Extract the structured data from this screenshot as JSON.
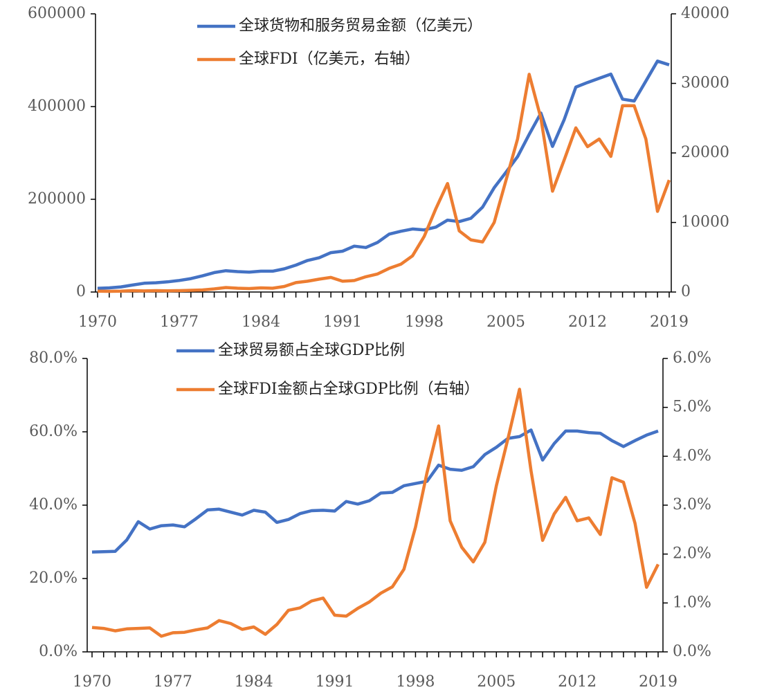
{
  "chart_data": [
    {
      "type": "line",
      "x": [
        1970,
        1971,
        1972,
        1973,
        1974,
        1975,
        1976,
        1977,
        1978,
        1979,
        1980,
        1981,
        1982,
        1983,
        1984,
        1985,
        1986,
        1987,
        1988,
        1989,
        1990,
        1991,
        1992,
        1993,
        1994,
        1995,
        1996,
        1997,
        1998,
        1999,
        2000,
        2001,
        2002,
        2003,
        2004,
        2005,
        2006,
        2007,
        2008,
        2009,
        2010,
        2011,
        2012,
        2013,
        2014,
        2015,
        2016,
        2017,
        2018,
        2019
      ],
      "xlim": [
        1970,
        2019
      ],
      "xticks": [
        1970,
        1977,
        1984,
        1991,
        1998,
        2005,
        2012,
        2019
      ],
      "ylim": [
        0,
        600000
      ],
      "yticks": [
        0,
        200000,
        400000,
        600000
      ],
      "y2lim": [
        0,
        40000
      ],
      "y2ticks": [
        0,
        10000,
        20000,
        30000,
        40000
      ],
      "series": [
        {
          "name": "全球货物和服务贸易金额（亿美元）",
          "color": "#4472c4",
          "values": [
            8000,
            9000,
            11000,
            15000,
            19000,
            20000,
            22000,
            25000,
            29000,
            35000,
            42000,
            46000,
            44000,
            43000,
            45000,
            45000,
            50000,
            58000,
            68000,
            74000,
            85000,
            88000,
            99000,
            96000,
            107000,
            125000,
            131000,
            136000,
            134000,
            140000,
            155000,
            152000,
            159000,
            183000,
            225000,
            258000,
            292000,
            340000,
            386000,
            314000,
            372000,
            442000,
            452000,
            461000,
            470000,
            416000,
            412000,
            455000,
            498000,
            490000
          ]
        },
        {
          "name": "全球FDI（亿美元，右轴）",
          "color": "#ed7d31",
          "axis": "y2",
          "values": [
            130,
            100,
            130,
            200,
            160,
            200,
            180,
            200,
            250,
            300,
            450,
            650,
            550,
            500,
            600,
            550,
            800,
            1350,
            1550,
            1850,
            2100,
            1550,
            1650,
            2200,
            2600,
            3400,
            4000,
            5200,
            8000,
            12000,
            15600,
            8800,
            7500,
            7200,
            10000,
            16000,
            22000,
            31300,
            25000,
            14500,
            19000,
            23600,
            20900,
            22000,
            19500,
            26800,
            26800,
            22000,
            11600,
            16100
          ]
        }
      ]
    },
    {
      "type": "line",
      "x": [
        1970,
        1971,
        1972,
        1973,
        1974,
        1975,
        1976,
        1977,
        1978,
        1979,
        1980,
        1981,
        1982,
        1983,
        1984,
        1985,
        1986,
        1987,
        1988,
        1989,
        1990,
        1991,
        1992,
        1993,
        1994,
        1995,
        1996,
        1997,
        1998,
        1999,
        2000,
        2001,
        2002,
        2003,
        2004,
        2005,
        2006,
        2007,
        2008,
        2009,
        2010,
        2011,
        2012,
        2013,
        2014,
        2015,
        2016,
        2017,
        2018,
        2019
      ],
      "xlim": [
        1970,
        2019
      ],
      "xticks": [
        1970,
        1977,
        1984,
        1991,
        1998,
        2005,
        2012,
        2019
      ],
      "ylim": [
        0,
        80
      ],
      "yticks": [
        {
          "value": 0,
          "label": "0.0%"
        },
        {
          "value": 20,
          "label": "20.0%"
        },
        {
          "value": 40,
          "label": "40.0%"
        },
        {
          "value": 60,
          "label": "60.0%"
        },
        {
          "value": 80,
          "label": "80.0%"
        }
      ],
      "y2lim": [
        0,
        6
      ],
      "y2ticks": [
        {
          "value": 0,
          "label": "0.0%"
        },
        {
          "value": 1,
          "label": "1.0%"
        },
        {
          "value": 2,
          "label": "2.0%"
        },
        {
          "value": 3,
          "label": "3.0%"
        },
        {
          "value": 4,
          "label": "4.0%"
        },
        {
          "value": 5,
          "label": "5.0%"
        },
        {
          "value": 6,
          "label": "6.0%"
        }
      ],
      "series": [
        {
          "name": "全球贸易额占全球GDP比例",
          "color": "#4472c4",
          "values": [
            27.2,
            27.3,
            27.4,
            30.5,
            35.5,
            33.5,
            34.4,
            34.6,
            34.1,
            36.3,
            38.7,
            38.9,
            38.1,
            37.3,
            38.6,
            38.1,
            35.3,
            36.1,
            37.7,
            38.5,
            38.6,
            38.4,
            41.0,
            40.3,
            41.2,
            43.3,
            43.5,
            45.3,
            45.9,
            46.5,
            50.9,
            49.8,
            49.5,
            50.5,
            53.8,
            55.8,
            58.2,
            58.7,
            60.5,
            52.3,
            56.8,
            60.2,
            60.2,
            59.8,
            59.6,
            57.6,
            56.0,
            57.6,
            59.1,
            60.2
          ]
        },
        {
          "name": "全球FDI金额占全球GDP比例（右轴）",
          "color": "#ed7d31",
          "axis": "y2",
          "values": [
            0.5,
            0.48,
            0.43,
            0.47,
            0.48,
            0.49,
            0.32,
            0.39,
            0.4,
            0.45,
            0.49,
            0.64,
            0.58,
            0.46,
            0.51,
            0.36,
            0.56,
            0.85,
            0.9,
            1.04,
            1.1,
            0.75,
            0.73,
            0.89,
            1.02,
            1.2,
            1.33,
            1.69,
            2.55,
            3.67,
            4.62,
            2.68,
            2.14,
            1.84,
            2.24,
            3.4,
            4.36,
            5.37,
            3.7,
            2.28,
            2.82,
            3.16,
            2.68,
            2.74,
            2.4,
            3.56,
            3.47,
            2.63,
            1.32,
            1.79
          ]
        }
      ]
    }
  ]
}
